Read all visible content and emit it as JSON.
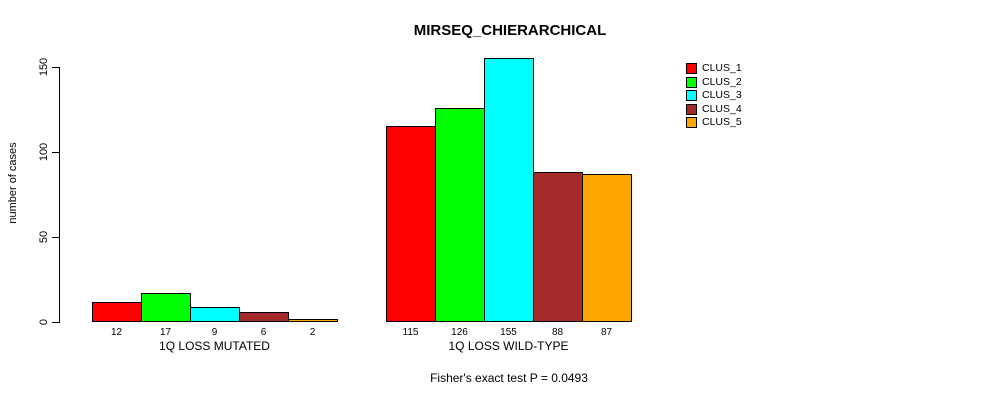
{
  "chart_data": {
    "type": "bar",
    "title": "MIRSEQ_CHIERARCHICAL",
    "ylabel": "number of cases",
    "yticks": [
      0,
      50,
      100,
      150
    ],
    "ylim": [
      0,
      160
    ],
    "grid": false,
    "legend_position": "right-outside",
    "series": [
      {
        "name": "CLUS_1",
        "color": "#ff0000"
      },
      {
        "name": "CLUS_2",
        "color": "#00ff00"
      },
      {
        "name": "CLUS_3",
        "color": "#00ffff"
      },
      {
        "name": "CLUS_4",
        "color": "#a52a2a"
      },
      {
        "name": "CLUS_5",
        "color": "#ffa500"
      }
    ],
    "groups": [
      {
        "label": "1Q LOSS MUTATED",
        "values": [
          12,
          17,
          9,
          6,
          2
        ],
        "bar_labels": [
          "12",
          "17",
          "9",
          "6",
          "2"
        ]
      },
      {
        "label": "1Q LOSS WILD-TYPE",
        "values": [
          115,
          126,
          155,
          88,
          87
        ],
        "bar_labels": [
          "115",
          "126",
          "155",
          "88",
          "87"
        ]
      }
    ],
    "annotation": "Fisher's exact test P = 0.0493"
  }
}
